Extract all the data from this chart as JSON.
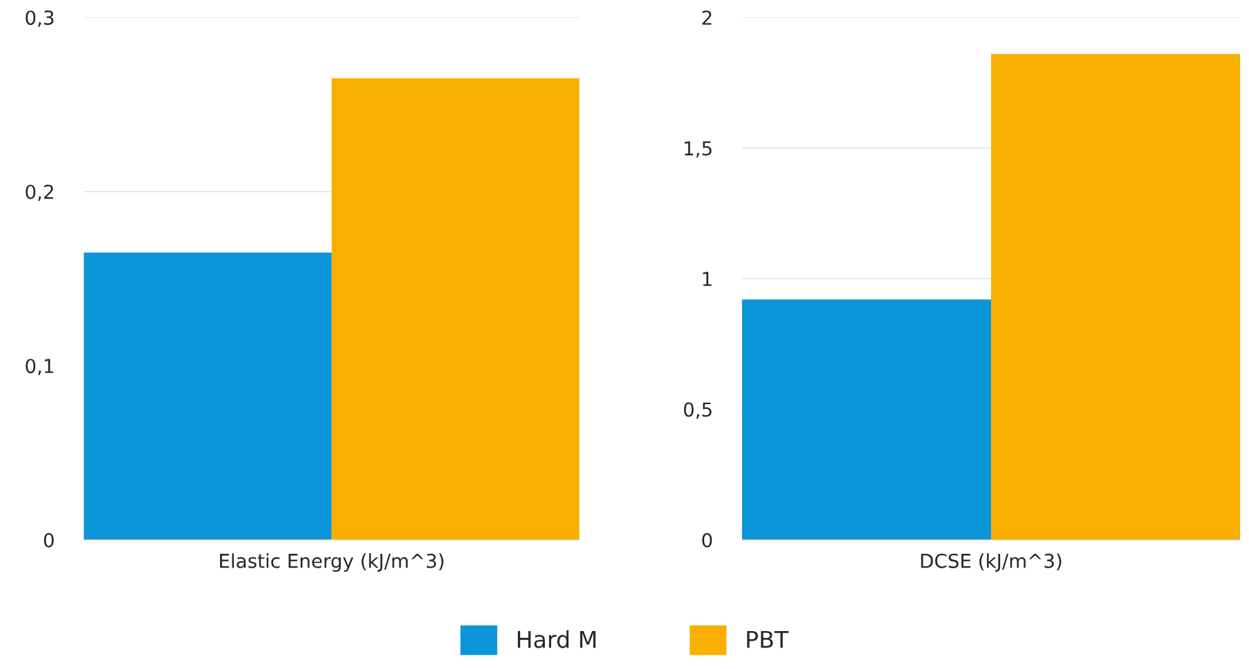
{
  "chart_data": [
    {
      "type": "bar",
      "categories": [
        "Elastic Energy (kJ/m^3)"
      ],
      "series": [
        {
          "name": "Hard M",
          "color": "#0a96d8",
          "values": [
            0.165
          ]
        },
        {
          "name": "PBT",
          "color": "#f8af00",
          "values": [
            0.265
          ]
        }
      ],
      "ylim": [
        0,
        0.3
      ],
      "yticks": [
        0,
        {
          "value": 0.1,
          "label": "0,1"
        },
        {
          "value": 0.2,
          "label": "0,2"
        },
        {
          "value": 0.3,
          "label": "0,3"
        }
      ],
      "grid": "y",
      "legend": "bottom"
    },
    {
      "type": "bar",
      "categories": [
        "DCSE (kJ/m^3)"
      ],
      "series": [
        {
          "color": "#0a96d8",
          "values": [
            0.92
          ]
        },
        {
          "color": "#f8af00",
          "values": [
            1.86
          ]
        }
      ],
      "ylim": [
        0,
        2
      ],
      "yticks": [
        0,
        {
          "value": 0.5,
          "label": "0,5"
        },
        1,
        {
          "value": 1.5,
          "label": "1,5"
        },
        2
      ],
      "grid": "y"
    }
  ]
}
